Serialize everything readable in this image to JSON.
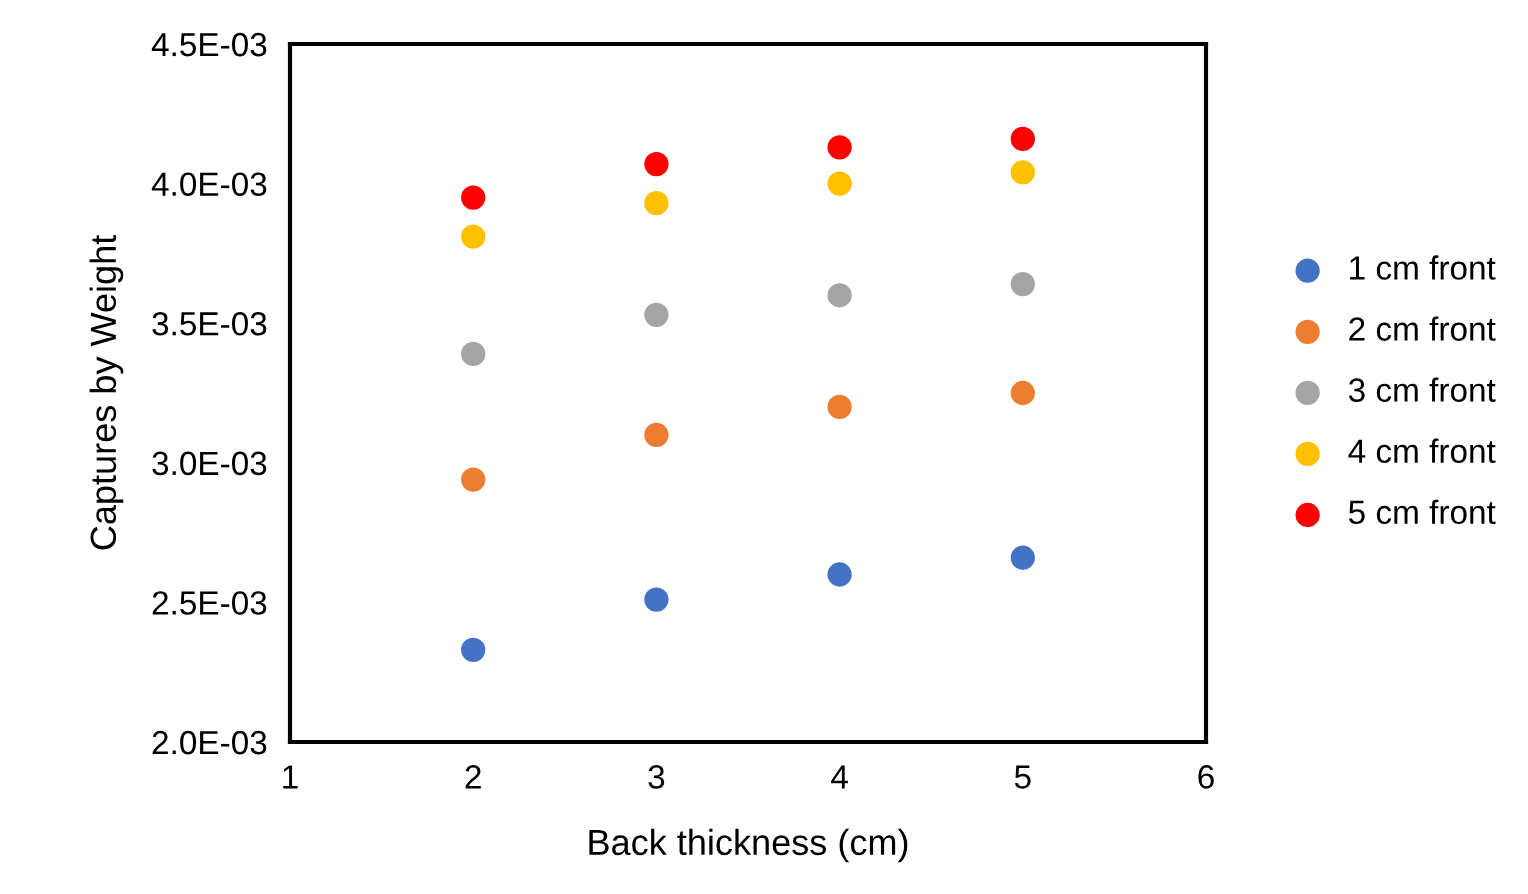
{
  "chart_data": {
    "type": "scatter",
    "xlabel": "Back thickness (cm)",
    "ylabel": "Captures by Weight",
    "xlim": [
      1,
      6
    ],
    "xticks": [
      1,
      2,
      3,
      4,
      5,
      6
    ],
    "ylim": [
      0.002,
      0.0045
    ],
    "yticks": [
      {
        "value": 0.002,
        "label": "2.0E-03"
      },
      {
        "value": 0.0025,
        "label": "2.5E-03"
      },
      {
        "value": 0.003,
        "label": "3.0E-03"
      },
      {
        "value": 0.0035,
        "label": "3.5E-03"
      },
      {
        "value": 0.004,
        "label": "4.0E-03"
      },
      {
        "value": 0.0045,
        "label": "4.5E-03"
      }
    ],
    "x": [
      2,
      3,
      4,
      5
    ],
    "grid": false,
    "legend": "right",
    "marker": "circle",
    "series": [
      {
        "name": "1 cm front",
        "color": "#4472c4",
        "values": [
          0.00233,
          0.00251,
          0.0026,
          0.00266
        ]
      },
      {
        "name": "2 cm front",
        "color": "#ed7d31",
        "values": [
          0.00294,
          0.0031,
          0.0032,
          0.00325
        ]
      },
      {
        "name": "3 cm front",
        "color": "#a5a5a5",
        "values": [
          0.00339,
          0.00353,
          0.0036,
          0.00364
        ]
      },
      {
        "name": "4 cm front",
        "color": "#ffc000",
        "values": [
          0.00381,
          0.00393,
          0.004,
          0.00404
        ]
      },
      {
        "name": "5 cm front",
        "color": "#ff0000",
        "values": [
          0.00395,
          0.00407,
          0.00413,
          0.00416
        ]
      }
    ]
  }
}
